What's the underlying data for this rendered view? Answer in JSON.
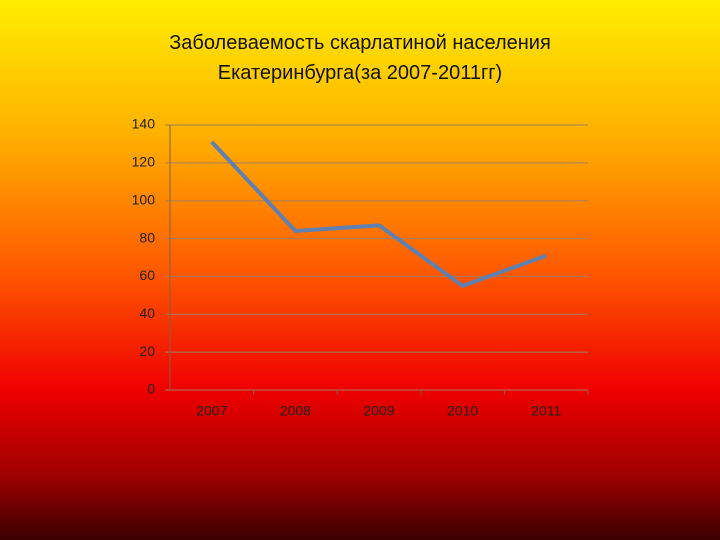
{
  "chart_data": {
    "type": "line",
    "title": "Заболеваемость скарлатиной населения Екатеринбурга(за 2007-2011гг)",
    "categories": [
      "2007",
      "2008",
      "2009",
      "2010",
      "2011"
    ],
    "values": [
      131,
      84,
      87,
      55,
      71
    ],
    "color": "#5f80b0",
    "ylim": [
      0,
      140
    ],
    "yticks": [
      0,
      20,
      40,
      60,
      80,
      100,
      120,
      140
    ],
    "grid": true
  }
}
